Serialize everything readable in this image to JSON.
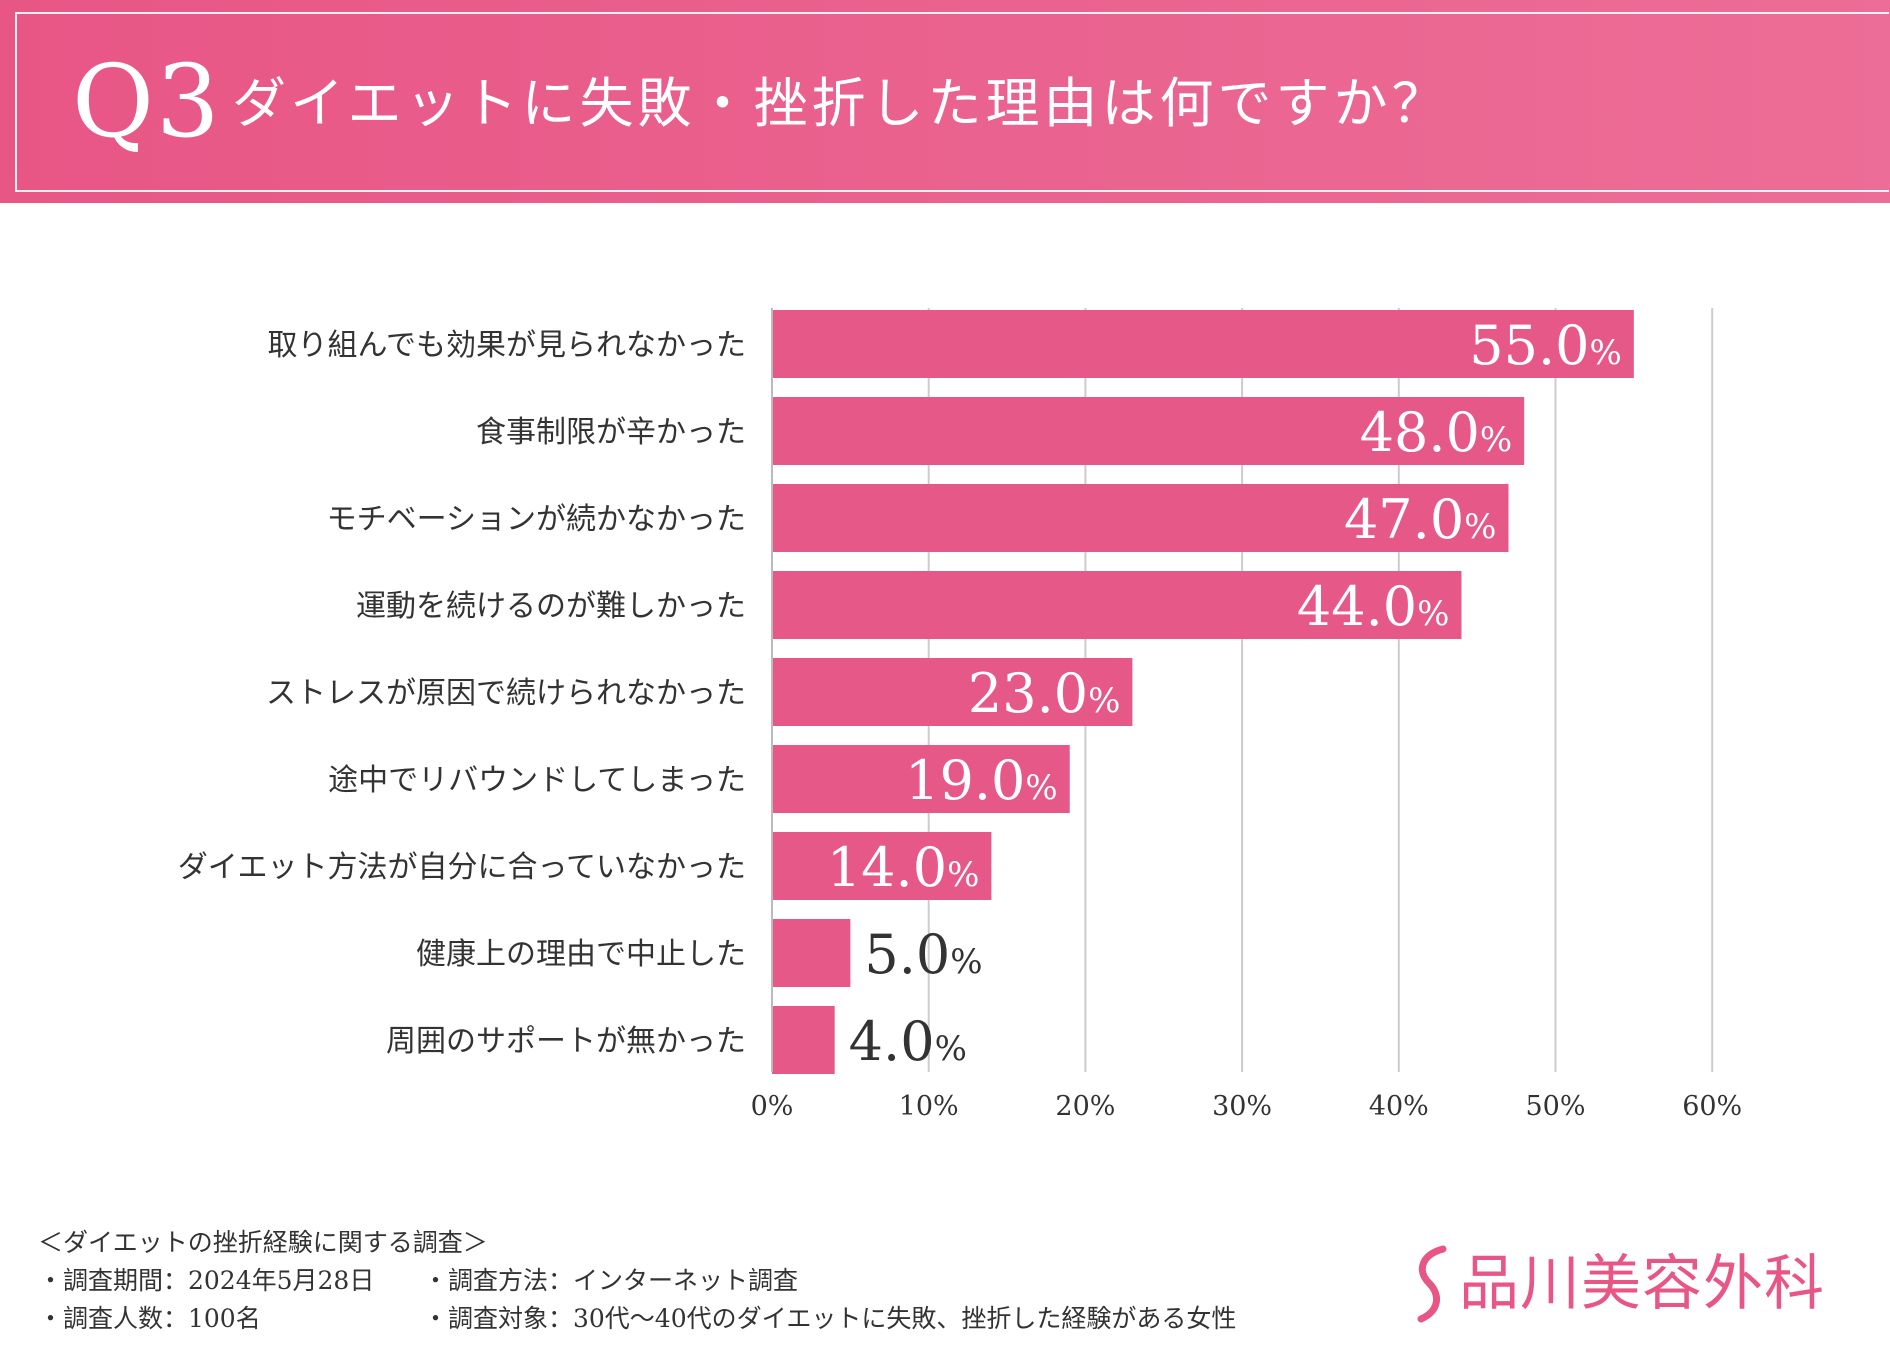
{
  "header": {
    "q_number": "Q3",
    "question": "ダイエットに失敗・挫折した理由は何ですか？"
  },
  "colors": {
    "bar": "#e65888",
    "header": "#e85686",
    "grid": "#cccccc",
    "label_inside": "#ffffff",
    "label_outside": "#333333",
    "logo": "#e85686"
  },
  "chart_data": {
    "type": "bar",
    "orientation": "horizontal",
    "title": "ダイエットに失敗・挫折した理由は何ですか？",
    "categories": [
      "取り組んでも効果が見られなかった",
      "食事制限が辛かった",
      "モチベーションが続かなかった",
      "運動を続けるのが難しかった",
      "ストレスが原因で続けられなかった",
      "途中でリバウンドしてしまった",
      "ダイエット方法が自分に合っていなかった",
      "健康上の理由で中止した",
      "周囲のサポートが無かった"
    ],
    "values": [
      55.0,
      48.0,
      47.0,
      44.0,
      23.0,
      19.0,
      14.0,
      5.0,
      4.0
    ],
    "value_labels": [
      "55.0",
      "48.0",
      "47.0",
      "44.0",
      "23.0",
      "19.0",
      "14.0",
      "5.0",
      "4.0"
    ],
    "value_suffix": "%",
    "xlim": [
      0,
      60
    ],
    "xticks": [
      "0%",
      "10%",
      "20%",
      "30%",
      "40%",
      "50%",
      "60%"
    ],
    "grid": true,
    "legend": "none"
  },
  "footer": {
    "survey_title": "＜ダイエットの挫折経験に関する調査＞",
    "period": "・調査期間：2024年5月28日",
    "method": "・調査方法：インターネット調査",
    "count": "・調査人数：100名",
    "target": "・調査対象：30代〜40代のダイエットに失敗、挫折した経験がある女性"
  },
  "logo": {
    "name": "品川美容外科",
    "mark_icon": "s-curve-logo-icon"
  }
}
